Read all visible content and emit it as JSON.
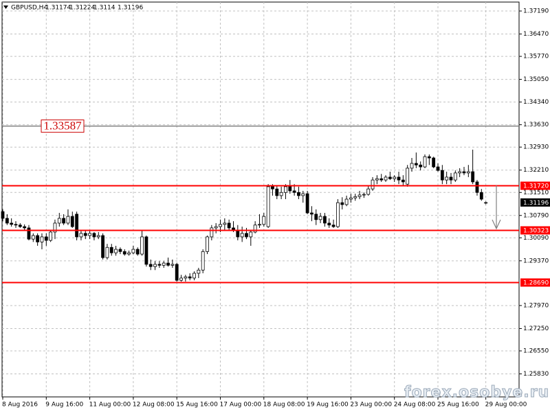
{
  "chart_data": {
    "type": "candlestick",
    "title": "GBPUSD,H4",
    "categories": [
      "8 Aug 2016",
      null,
      null,
      null,
      null,
      null,
      null,
      null,
      null,
      null,
      "9 Aug 16:00",
      null,
      null,
      null,
      null,
      null,
      null,
      null,
      null,
      null,
      "11 Aug 00:00",
      null,
      null,
      null,
      null,
      null,
      null,
      null,
      null,
      null,
      "12 Aug 08:00",
      null,
      null,
      null,
      null,
      null,
      null,
      null,
      null,
      null,
      "15 Aug 16:00",
      null,
      null,
      null,
      null,
      null,
      null,
      null,
      null,
      null,
      "17 Aug 00:00",
      null,
      null,
      null,
      null,
      null,
      null,
      null,
      null,
      null,
      "18 Aug 08:00",
      null,
      null,
      null,
      null,
      null,
      null,
      null,
      null,
      null,
      "19 Aug 16:00",
      null,
      null,
      null,
      null,
      null,
      null,
      null,
      null,
      null,
      "23 Aug 00:00",
      null,
      null,
      null,
      null,
      null,
      null,
      null,
      null,
      null,
      "24 Aug 08:00",
      null,
      null,
      null,
      null,
      null,
      null,
      null,
      null,
      null,
      "25 Aug 16:00",
      null,
      null,
      null,
      null,
      null,
      null,
      null,
      null,
      null,
      null,
      "29 Aug 00:00"
    ],
    "open": [
      1.3091,
      1.307,
      1.3055,
      1.3051,
      1.3049,
      1.3044,
      1.304,
      1.3005,
      1.3016,
      1.2996,
      1.3012,
      1.3001,
      1.3027,
      1.3055,
      1.307,
      1.3055,
      1.3076,
      1.3083,
      1.3012,
      1.3023,
      1.3016,
      1.3023,
      1.3012,
      1.3016,
      1.2947,
      1.2979,
      1.2962,
      1.2973,
      1.2966,
      1.2958,
      1.2962,
      1.2973,
      1.2958,
      1.3012,
      1.2926,
      1.2919,
      1.2926,
      1.2923,
      1.293,
      1.2923,
      1.2926,
      1.2876,
      1.2883,
      1.2887,
      1.2883,
      1.2898,
      1.2908,
      1.2966,
      1.3012,
      1.304,
      1.3044,
      1.3051,
      1.3055,
      1.304,
      1.3033,
      1.3012,
      1.3023,
      1.3012,
      1.3027,
      1.3049,
      1.3051,
      1.3044,
      1.3169,
      1.3162,
      1.3141,
      1.3151,
      1.3169,
      1.3156,
      1.3151,
      1.3141,
      1.3147,
      1.3087,
      1.3083,
      1.3066,
      1.3076,
      1.3055,
      1.3049,
      1.3044,
      1.3119,
      1.3113,
      1.313,
      1.3134,
      1.3138,
      1.3143,
      1.3145,
      1.3162,
      1.319,
      1.3194,
      1.319,
      1.3199,
      1.3194,
      1.3199,
      1.319,
      1.3177,
      1.3227,
      1.3242,
      1.3237,
      1.3231,
      1.3263,
      1.3259,
      1.3231,
      1.322,
      1.319,
      1.3199,
      1.319,
      1.3212,
      1.3216,
      1.3212,
      1.3216,
      1.3184,
      1.3151,
      1.31174
    ],
    "high": [
      1.3098,
      1.3083,
      1.307,
      1.3061,
      1.3055,
      1.3051,
      1.3049,
      1.3023,
      1.3023,
      1.3023,
      1.3023,
      1.3033,
      1.3066,
      1.3087,
      1.3083,
      1.3098,
      1.3091,
      1.3091,
      1.3033,
      1.3033,
      1.3033,
      1.3027,
      1.3027,
      1.3023,
      1.299,
      1.299,
      1.2984,
      1.2979,
      1.2973,
      1.2969,
      1.2984,
      1.2979,
      1.3033,
      1.3016,
      1.2941,
      1.2936,
      1.2936,
      1.2936,
      1.2947,
      1.2941,
      1.293,
      1.2893,
      1.2893,
      1.2898,
      1.2904,
      1.2915,
      1.2973,
      1.3016,
      1.3049,
      1.3055,
      1.3066,
      1.307,
      1.3066,
      1.3061,
      1.3049,
      1.3044,
      1.304,
      1.3033,
      1.3061,
      1.3083,
      1.3087,
      1.3177,
      1.3177,
      1.3173,
      1.3169,
      1.3177,
      1.319,
      1.3177,
      1.3169,
      1.3156,
      1.3156,
      1.3108,
      1.3098,
      1.3087,
      1.3087,
      1.307,
      1.3066,
      1.313,
      1.3136,
      1.3141,
      1.3147,
      1.3147,
      1.3156,
      1.3151,
      1.3173,
      1.3199,
      1.3205,
      1.3209,
      1.3205,
      1.3216,
      1.3205,
      1.3216,
      1.3205,
      1.3237,
      1.3259,
      1.3276,
      1.3248,
      1.327,
      1.327,
      1.3263,
      1.3242,
      1.3237,
      1.3216,
      1.3212,
      1.322,
      1.3227,
      1.3231,
      1.3237,
      1.3285,
      1.319,
      1.3162,
      1.31224
    ],
    "low": [
      1.3061,
      1.3049,
      1.3044,
      1.304,
      1.304,
      1.3033,
      1.3001,
      1.2996,
      1.2984,
      1.2973,
      1.2984,
      1.2996,
      1.3005,
      1.3044,
      1.3049,
      1.3049,
      1.304,
      1.3001,
      1.3001,
      1.3005,
      1.3005,
      1.3001,
      1.3005,
      1.2941,
      1.2941,
      1.2953,
      1.2953,
      1.2958,
      1.2953,
      1.2953,
      1.2958,
      1.2953,
      1.2953,
      1.2919,
      1.2908,
      1.2908,
      1.2915,
      1.2915,
      1.2919,
      1.2915,
      1.2872,
      1.2872,
      1.2872,
      1.2876,
      1.2876,
      1.2883,
      1.2898,
      1.2958,
      1.3001,
      1.3023,
      1.3027,
      1.3033,
      1.3033,
      1.3027,
      1.3001,
      1.2996,
      1.3005,
      1.2984,
      1.3023,
      1.304,
      1.3044,
      1.304,
      1.3141,
      1.313,
      1.313,
      1.313,
      1.3147,
      1.3141,
      1.313,
      1.3119,
      1.3083,
      1.3061,
      1.3049,
      1.3055,
      1.3044,
      1.304,
      1.304,
      1.304,
      1.3098,
      1.3108,
      1.3119,
      1.3125,
      1.313,
      1.3134,
      1.3141,
      1.3156,
      1.3177,
      1.3184,
      1.3184,
      1.319,
      1.3184,
      1.3177,
      1.3173,
      1.3169,
      1.3216,
      1.3227,
      1.322,
      1.3227,
      1.3237,
      1.3227,
      1.3216,
      1.3177,
      1.3177,
      1.3177,
      1.3184,
      1.3199,
      1.3205,
      1.3199,
      1.3177,
      1.3141,
      1.3125,
      1.3114
    ],
    "close": [
      1.307,
      1.3055,
      1.3051,
      1.3049,
      1.3044,
      1.304,
      1.3005,
      1.3016,
      1.2996,
      1.3012,
      1.3001,
      1.3027,
      1.3055,
      1.307,
      1.3055,
      1.3076,
      1.3044,
      1.3012,
      1.3023,
      1.3016,
      1.3023,
      1.3012,
      1.3016,
      1.2947,
      1.2979,
      1.2962,
      1.2973,
      1.2966,
      1.2958,
      1.2962,
      1.2973,
      1.2958,
      1.3012,
      1.2926,
      1.2919,
      1.2926,
      1.2923,
      1.293,
      1.2923,
      1.2926,
      1.2876,
      1.2883,
      1.2887,
      1.2883,
      1.2898,
      1.2908,
      1.2966,
      1.3012,
      1.304,
      1.3044,
      1.3051,
      1.3055,
      1.304,
      1.3033,
      1.3012,
      1.3023,
      1.3012,
      1.3027,
      1.3049,
      1.3051,
      1.3076,
      1.3169,
      1.3162,
      1.3141,
      1.3151,
      1.3169,
      1.3156,
      1.3151,
      1.3141,
      1.3147,
      1.3087,
      1.3083,
      1.3066,
      1.3076,
      1.3055,
      1.3049,
      1.3044,
      1.3119,
      1.3113,
      1.313,
      1.3134,
      1.3138,
      1.3143,
      1.3145,
      1.3162,
      1.319,
      1.3194,
      1.319,
      1.3199,
      1.3194,
      1.3199,
      1.319,
      1.3184,
      1.3227,
      1.3242,
      1.3237,
      1.3231,
      1.3263,
      1.3259,
      1.3231,
      1.322,
      1.319,
      1.3199,
      1.319,
      1.3212,
      1.3216,
      1.3212,
      1.3216,
      1.3184,
      1.3151,
      1.313,
      1.31196
    ],
    "up_color": "#ffffff",
    "down_color": "#000000",
    "ylim": [
      1.2511,
      1.3747
    ],
    "yticks": [
      {
        "value": 1.3719,
        "label": "1.37190"
      },
      {
        "value": 1.3647,
        "label": "1.36470"
      },
      {
        "value": 1.3577,
        "label": "1.35770"
      },
      {
        "value": 1.3505,
        "label": "1.35050"
      },
      {
        "value": 1.3434,
        "label": "1.34340"
      },
      {
        "value": 1.3363,
        "label": "1.33630"
      },
      {
        "value": 1.3293,
        "label": "1.32930"
      },
      {
        "value": 1.3221,
        "label": "1.32210"
      },
      {
        "value": 1.3151,
        "label": "1.31510"
      },
      {
        "value": 1.3079,
        "label": "1.30790"
      },
      {
        "value": 1.3009,
        "label": "1.30090"
      },
      {
        "value": 1.2937,
        "label": "1.29370"
      },
      {
        "value": 1.2797,
        "label": "1.27970"
      },
      {
        "value": 1.2725,
        "label": "1.27250"
      },
      {
        "value": 1.2655,
        "label": "1.26550"
      },
      {
        "value": 1.2583,
        "label": "1.25830"
      }
    ],
    "grid": true,
    "levels": [
      {
        "value": 1.3172,
        "label": "1.31720",
        "color": "#ff0000"
      },
      {
        "value": 1.30323,
        "label": "1.30323",
        "color": "#ff0000"
      },
      {
        "value": 1.2869,
        "label": "1.28690",
        "color": "#ff0000"
      }
    ],
    "price_line": {
      "value": 1.33587,
      "label": "1.33587",
      "color": "#808080",
      "label_color": "#cc0000"
    },
    "current_price": {
      "value": 1.31196,
      "label": "1.31196"
    },
    "watermark": "forex.osobye.ru"
  }
}
